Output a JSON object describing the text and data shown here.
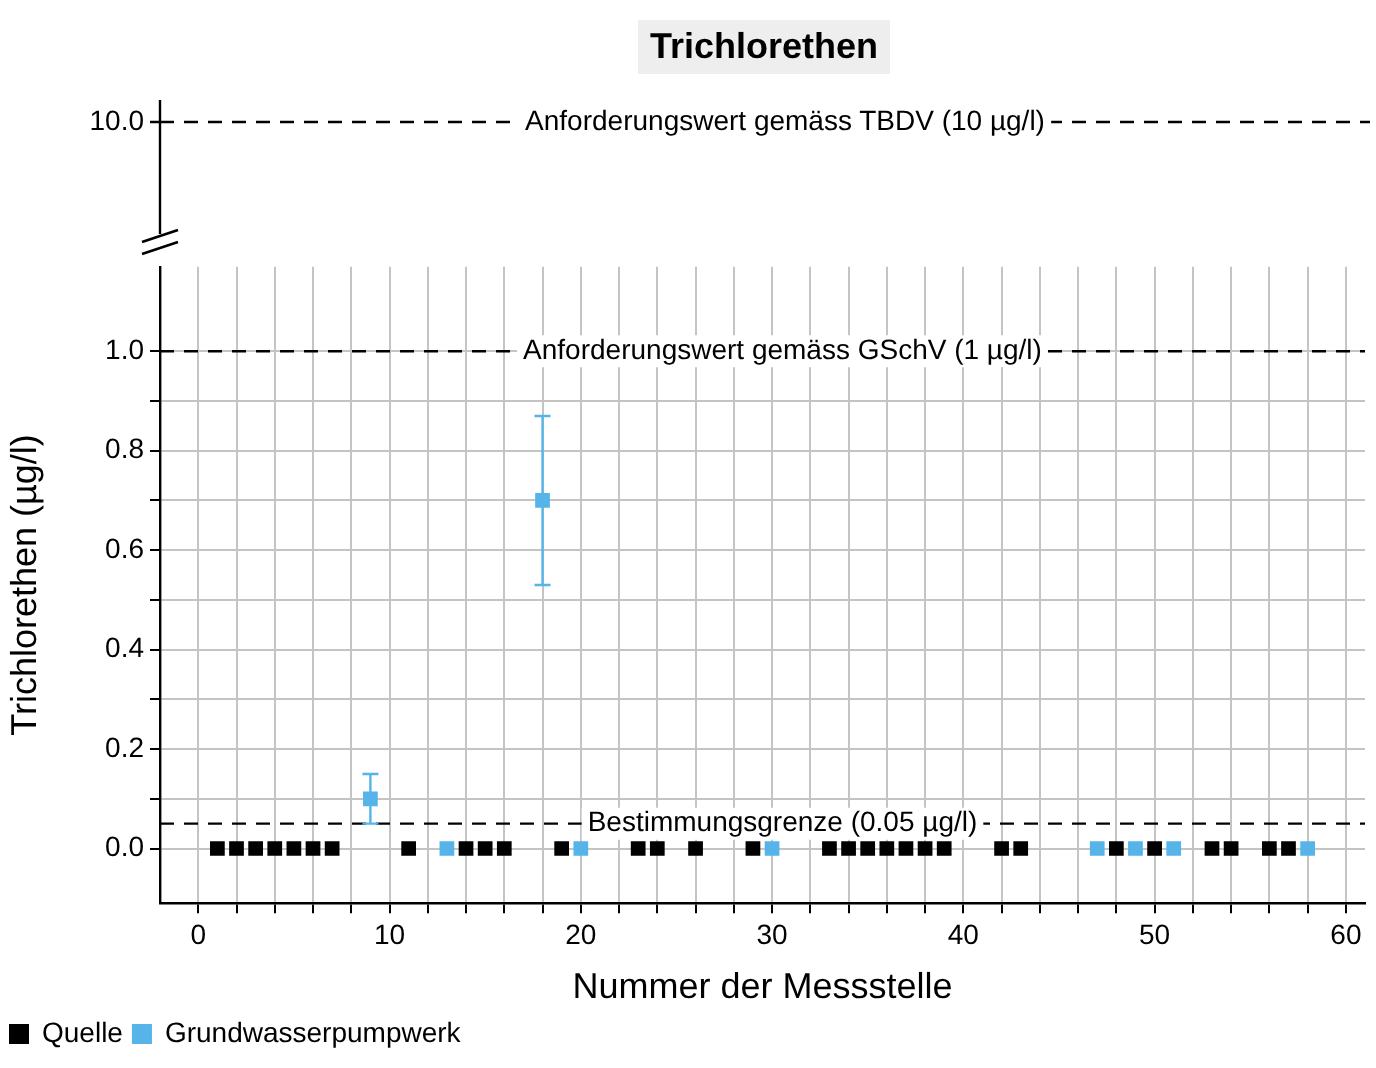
{
  "chart_data": [
    {
      "type": "other",
      "title": "Trichlorethen",
      "annotations": [
        "10.0",
        "Anforderungswert gemäss TBDV (10 µg/l)"
      ]
    },
    {
      "type": "scatter",
      "xlabel": "Nummer der Messstelle",
      "ylabel": "Trichlorethen (µg/l)",
      "xlim": [
        -2,
        61
      ],
      "ylim": [
        -0.11,
        1.17
      ],
      "grid": true,
      "legend": "bottom left",
      "marker": "square",
      "xticks": [
        0,
        {
          "value": 2,
          "label": null
        },
        {
          "value": 4,
          "label": null
        },
        {
          "value": 6,
          "label": null
        },
        {
          "value": 8,
          "label": null
        },
        10,
        {
          "value": 12,
          "label": null
        },
        {
          "value": 14,
          "label": null
        },
        {
          "value": 16,
          "label": null
        },
        {
          "value": 18,
          "label": null
        },
        20,
        {
          "value": 22,
          "label": null
        },
        {
          "value": 24,
          "label": null
        },
        {
          "value": 26,
          "label": null
        },
        {
          "value": 28,
          "label": null
        },
        30,
        {
          "value": 32,
          "label": null
        },
        {
          "value": 34,
          "label": null
        },
        {
          "value": 36,
          "label": null
        },
        {
          "value": 38,
          "label": null
        },
        40,
        {
          "value": 42,
          "label": null
        },
        {
          "value": 44,
          "label": null
        },
        {
          "value": 46,
          "label": null
        },
        {
          "value": 48,
          "label": null
        },
        50,
        {
          "value": 52,
          "label": null
        },
        {
          "value": 54,
          "label": null
        },
        {
          "value": 56,
          "label": null
        },
        {
          "value": 58,
          "label": null
        },
        60
      ],
      "yticks": [
        {
          "value": 0,
          "label": "0.0"
        },
        {
          "value": 0.1,
          "label": null
        },
        {
          "value": 0.2,
          "label": "0.2"
        },
        {
          "value": 0.3,
          "label": null
        },
        {
          "value": 0.4,
          "label": "0.4"
        },
        {
          "value": 0.5,
          "label": null
        },
        {
          "value": 0.6,
          "label": "0.6"
        },
        {
          "value": 0.7,
          "label": null
        },
        {
          "value": 0.8,
          "label": "0.8"
        },
        {
          "value": 0.9,
          "label": null
        },
        {
          "value": 1,
          "label": "1.0"
        }
      ],
      "ref_lines": [
        {
          "axis": "y",
          "value": 1,
          "label": "Anforderungswert gemäss GSchV (1 µg/l)",
          "color": "#000000",
          "line_style": "dashed"
        },
        {
          "axis": "y",
          "value": 0.05,
          "label": "Bestimmungsgrenze (0.05 µg/l)",
          "color": "#000000",
          "line_style": "dashed"
        }
      ],
      "series": [
        {
          "name": "Quelle",
          "color": "#000000",
          "x": [
            1,
            2,
            3,
            4,
            5,
            6,
            7,
            11,
            14,
            15,
            16,
            19,
            23,
            24,
            26,
            29,
            33,
            34,
            35,
            36,
            37,
            38,
            39,
            42,
            43,
            48,
            50,
            53,
            54,
            56,
            57
          ],
          "values": [
            0,
            0,
            0,
            0,
            0,
            0,
            0,
            0,
            0,
            0,
            0,
            0,
            0,
            0,
            0,
            0,
            0,
            0,
            0,
            0,
            0,
            0,
            0,
            0,
            0,
            0,
            0,
            0,
            0,
            0,
            0
          ]
        },
        {
          "name": "Grundwasserpumpwerk",
          "color": "#56b4e9",
          "x": [
            9,
            13,
            18,
            20,
            30,
            47,
            49,
            51,
            58
          ],
          "values": [
            0.1,
            0,
            0.7,
            0,
            0,
            0,
            0,
            0,
            0
          ],
          "errors": [
            0.05,
            null,
            0.17,
            null,
            null,
            null,
            null,
            null,
            null
          ]
        }
      ]
    }
  ]
}
